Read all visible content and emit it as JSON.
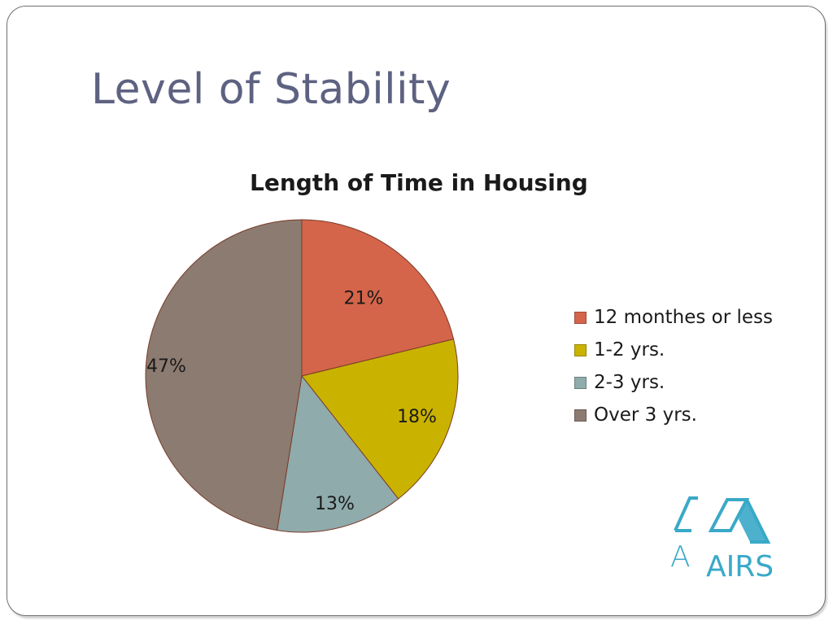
{
  "slide": {
    "title": "Level of Stability"
  },
  "chart_data": {
    "type": "pie",
    "title": "Length of Time in Housing",
    "categories": [
      "12 monthes or less",
      "1-2 yrs.",
      "2-3 yrs.",
      "Over 3 yrs."
    ],
    "values": [
      21,
      18,
      13,
      47
    ],
    "labels": [
      "21%",
      "18%",
      "13%",
      "47%"
    ],
    "colors": [
      "#d4654a",
      "#cab300",
      "#8fabac",
      "#8c7b70"
    ],
    "start": "12 o'clock, clockwise",
    "legend_position": "right"
  },
  "logo": {
    "text": "AIRS",
    "color": "#3aa9c8",
    "icon": "airs-logo-icon"
  }
}
